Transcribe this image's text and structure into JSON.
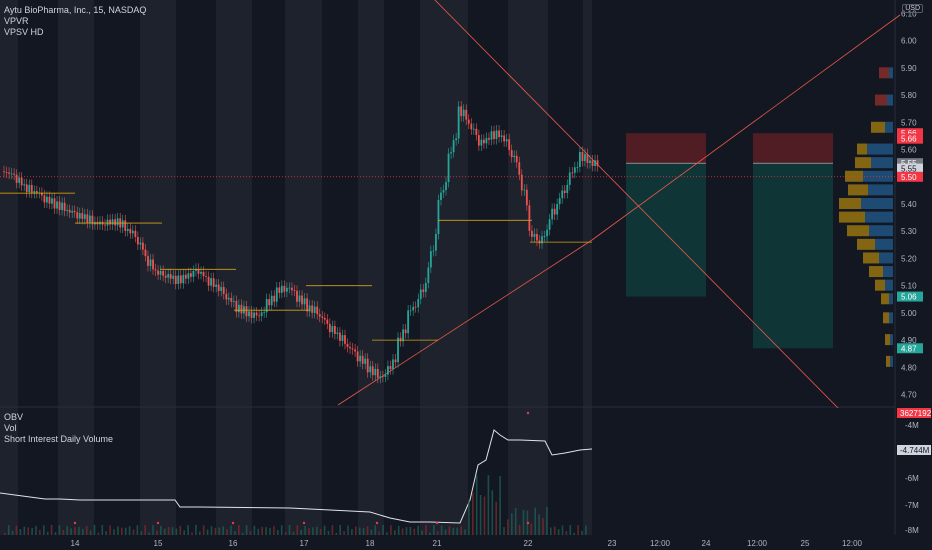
{
  "legend_main": [
    "Aytu BioPharma, Inc., 15, NASDAQ",
    "VPVR",
    "VPSV HD"
  ],
  "legend_sub": [
    "OBV",
    "Vol",
    "Short Interest Daily Volume"
  ],
  "currency": "USD",
  "colors": {
    "bg": "#131722",
    "up": "#26a69a",
    "down": "#ef5350",
    "grid": "#2a2e39",
    "orange": "#d4a017",
    "line": "#f05a4a"
  },
  "chart_data": {
    "type": "candlestick",
    "symbol": "Aytu BioPharma, Inc., 15, NASDAQ",
    "price_axis": {
      "min": 4.68,
      "max": 6.12,
      "ticks": [
        "6.10",
        "6.00",
        "5.90",
        "5.80",
        "5.70",
        "5.60",
        "5.50",
        "5.40",
        "5.30",
        "5.20",
        "5.10",
        "5.00",
        "4.90",
        "4.80",
        "4.70"
      ]
    },
    "x_labels": [
      "14",
      "15",
      "16",
      "17",
      "18",
      "21",
      "22",
      "23",
      "12:00",
      "24",
      "12:00",
      "25",
      "12:00"
    ],
    "price_tags": [
      {
        "value": "5.66",
        "color": "#f23645"
      },
      {
        "value": "5.66",
        "color": "#f23645"
      },
      {
        "value": "5.55",
        "color": "#787b86"
      },
      {
        "value": "5.55",
        "color": "#d1d4dc"
      },
      {
        "value": "5.50",
        "color": "#f23645"
      },
      {
        "value": "5.06",
        "color": "#26a69a"
      },
      {
        "value": "4.87",
        "color": "#26a69a"
      }
    ],
    "close_series": [
      5.52,
      5.5,
      5.46,
      5.45,
      5.42,
      5.4,
      5.38,
      5.36,
      5.35,
      5.33,
      5.33,
      5.34,
      5.31,
      5.28,
      5.2,
      5.15,
      5.14,
      5.12,
      5.13,
      5.16,
      5.12,
      5.1,
      5.06,
      5.02,
      5.0,
      4.98,
      5.03,
      5.08,
      5.1,
      5.06,
      5.02,
      5.0,
      4.95,
      4.92,
      4.88,
      4.84,
      4.8,
      4.76,
      4.78,
      4.88,
      5.0,
      5.05,
      5.15,
      5.4,
      5.55,
      5.75,
      5.7,
      5.62,
      5.65,
      5.66,
      5.6,
      5.52,
      5.3,
      5.25,
      5.35,
      5.42,
      5.5,
      5.58,
      5.55
    ],
    "obv_axis": {
      "ticks": [
        "-4M",
        "-5M",
        "-6M",
        "-7M",
        "-8M"
      ]
    },
    "obv_tags": [
      {
        "value": "3627192",
        "color": "#f23645"
      },
      {
        "value": "-4.744M",
        "color": "#d1d4dc"
      }
    ]
  }
}
